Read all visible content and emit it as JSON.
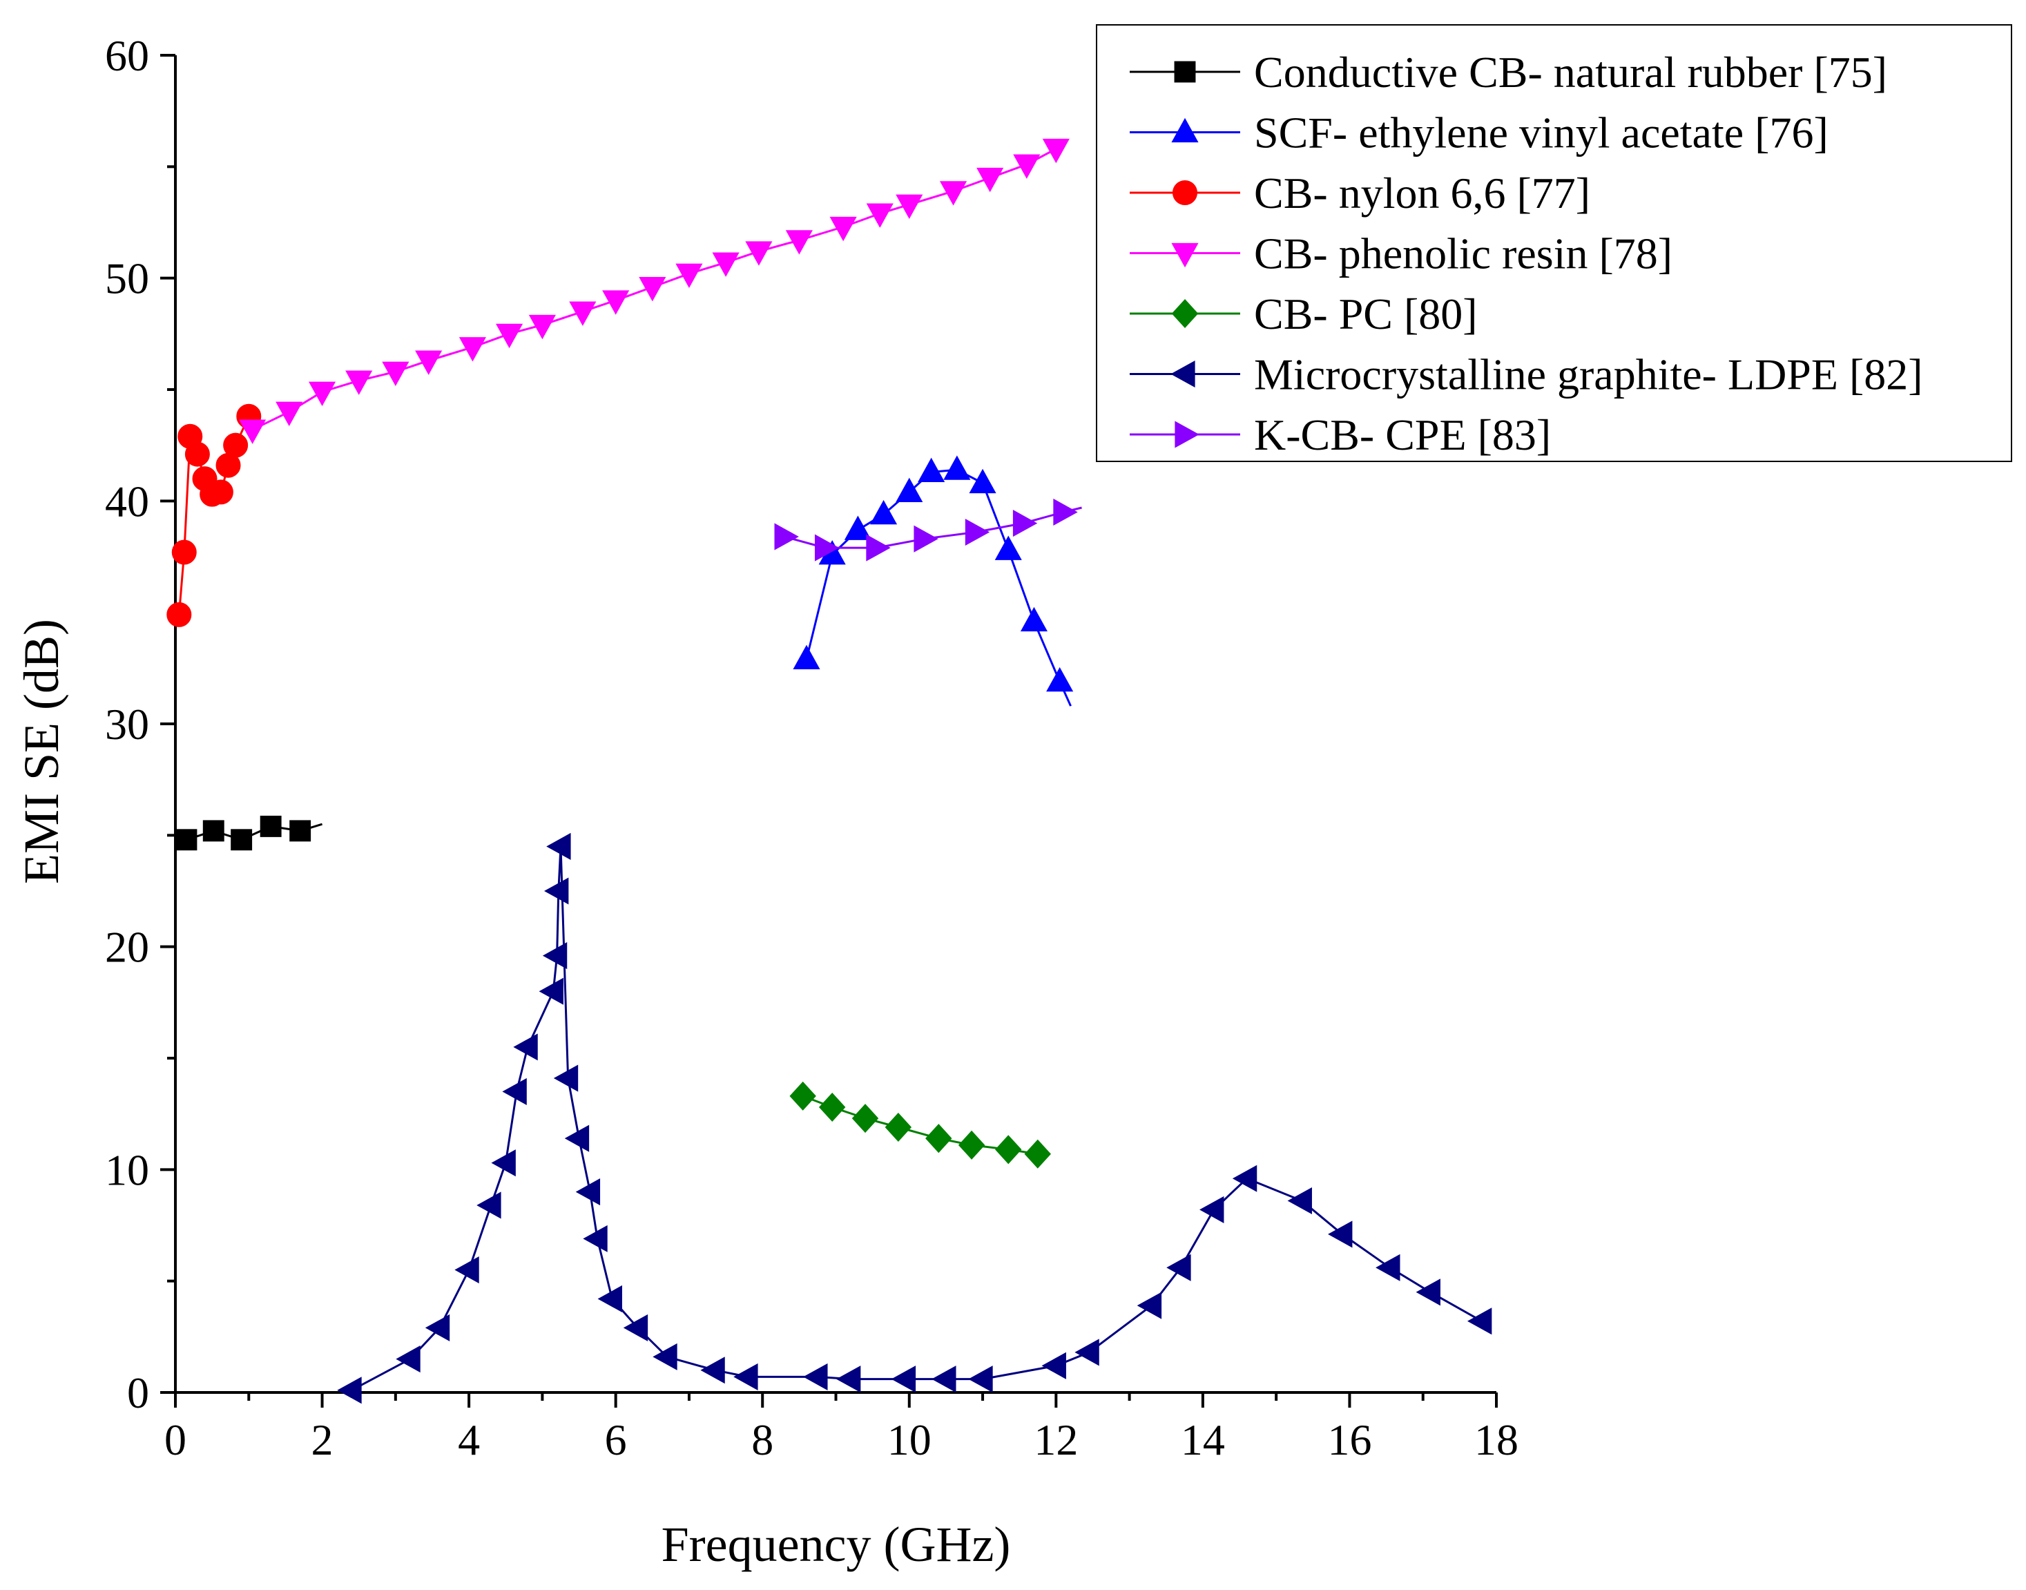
{
  "chart_data": {
    "type": "line",
    "xlabel": "Frequency (GHz)",
    "ylabel": "EMI SE (dB)",
    "xlim": [
      0,
      18
    ],
    "ylim": [
      0,
      60
    ],
    "xticks": [
      0,
      2,
      4,
      6,
      8,
      10,
      12,
      14,
      16,
      18
    ],
    "yticks": [
      0,
      10,
      20,
      30,
      40,
      50,
      60
    ],
    "grid": false,
    "legend_position": "top-right",
    "series": [
      {
        "name": "Conductive CB- natural rubber [75]",
        "color": "#000000",
        "marker": "square",
        "x": [
          0.15,
          0.52,
          0.9,
          1.3,
          1.7
        ],
        "y": [
          24.8,
          25.2,
          24.8,
          25.4,
          25.2
        ],
        "line_extension": [
          [
            1.7,
            25.2
          ],
          [
            2.0,
            25.5
          ]
        ]
      },
      {
        "name": "SCF- ethylene vinyl acetate [76]",
        "color": "#0000ff",
        "marker": "triangle-up",
        "x": [
          8.6,
          8.95,
          9.3,
          9.65,
          10.0,
          10.3,
          10.65,
          11.0,
          11.35,
          11.7,
          12.05
        ],
        "y": [
          32.9,
          37.6,
          38.7,
          39.4,
          40.4,
          41.3,
          41.4,
          40.8,
          37.8,
          34.6,
          31.9
        ],
        "line_extension": [
          [
            12.05,
            31.9
          ],
          [
            12.2,
            30.8
          ]
        ]
      },
      {
        "name": "CB- nylon 6,6 [77]",
        "color": "#ff0000",
        "marker": "circle",
        "x": [
          0.05,
          0.12,
          0.2,
          0.3,
          0.4,
          0.5,
          0.62,
          0.72,
          0.82,
          1.0
        ],
        "y": [
          34.9,
          37.7,
          42.9,
          42.1,
          41.0,
          40.3,
          40.4,
          41.6,
          42.5,
          43.8
        ]
      },
      {
        "name": "CB- phenolic resin [78]",
        "color": "#ff00ff",
        "marker": "triangle-down",
        "x": [
          1.05,
          1.55,
          2.0,
          2.5,
          3.0,
          3.45,
          4.05,
          4.55,
          5.0,
          5.55,
          6.0,
          6.5,
          7.0,
          7.5,
          7.95,
          8.5,
          9.1,
          9.6,
          10.0,
          10.6,
          11.1,
          11.6,
          12.0
        ],
        "y": [
          43.2,
          44.0,
          44.9,
          45.4,
          45.8,
          46.3,
          46.9,
          47.5,
          47.9,
          48.5,
          49.0,
          49.6,
          50.2,
          50.7,
          51.2,
          51.7,
          52.3,
          52.9,
          53.3,
          53.9,
          54.5,
          55.1,
          55.8
        ]
      },
      {
        "name": "CB- PC [80]",
        "color": "#008000",
        "marker": "diamond",
        "x": [
          8.55,
          8.95,
          9.4,
          9.85,
          10.4,
          10.85,
          11.35,
          11.75
        ],
        "y": [
          13.3,
          12.8,
          12.3,
          11.9,
          11.4,
          11.1,
          10.9,
          10.7
        ]
      },
      {
        "name": "Microcrystalline graphite- LDPE [82]",
        "color": "#000080",
        "marker": "triangle-left",
        "x": [
          2.4,
          3.2,
          3.6,
          4.0,
          4.3,
          4.5,
          4.65,
          4.8,
          5.15,
          5.2,
          5.22,
          5.25,
          5.35,
          5.5,
          5.65,
          5.75,
          5.95,
          6.3,
          6.7,
          7.35,
          7.8,
          8.75,
          9.2,
          9.95,
          10.5,
          11.0,
          12.0,
          12.45,
          13.3,
          13.7,
          14.15,
          14.6,
          15.35,
          15.9,
          16.55,
          17.1,
          17.8
        ],
        "y": [
          0.1,
          1.5,
          2.9,
          5.5,
          8.4,
          10.3,
          13.5,
          15.5,
          18.0,
          19.6,
          22.5,
          24.5,
          14.1,
          11.4,
          9.0,
          6.9,
          4.2,
          2.9,
          1.6,
          1.0,
          0.7,
          0.7,
          0.6,
          0.6,
          0.6,
          0.6,
          1.2,
          1.8,
          3.9,
          5.6,
          8.2,
          9.6,
          8.6,
          7.1,
          5.6,
          4.5,
          3.2
        ]
      },
      {
        "name": "K-CB- CPE [83]",
        "color": "#8a00ff",
        "marker": "triangle-right",
        "x": [
          8.3,
          8.85,
          9.55,
          10.2,
          10.9,
          11.55,
          12.1
        ],
        "y": [
          38.4,
          37.9,
          37.9,
          38.3,
          38.6,
          39.0,
          39.5
        ],
        "line_extension": [
          [
            12.1,
            39.5
          ],
          [
            12.35,
            39.7
          ]
        ]
      }
    ]
  }
}
